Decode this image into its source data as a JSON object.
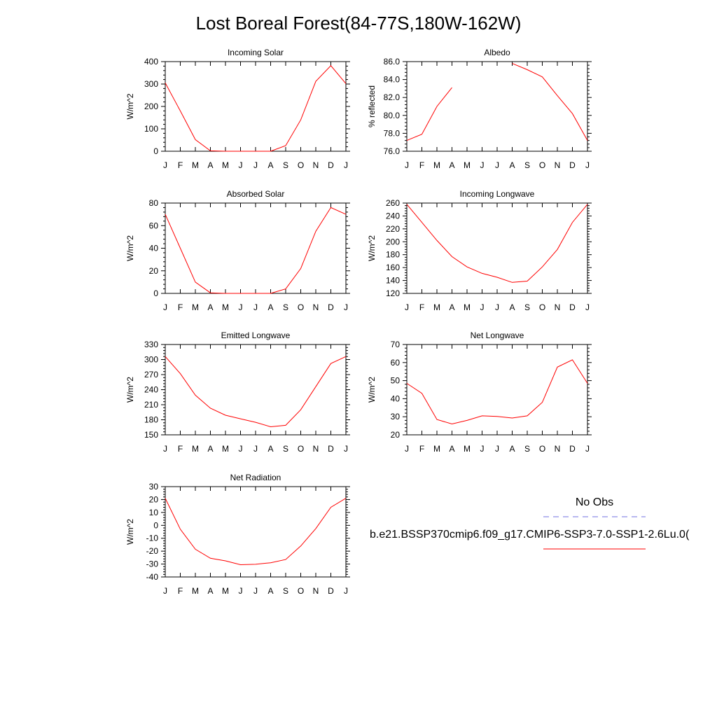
{
  "title": "Lost Boreal Forest(84-77S,180W-162W)",
  "colors": {
    "model_line": "#ff0000",
    "obs_line": "#7070e0",
    "axis": "#000000"
  },
  "legend": {
    "obs_label": "No Obs",
    "model_label": "b.e21.BSSP370cmip6.f09_g17.CMIP6-SSP3-7.0-SSP1-2.6Lu.0("
  },
  "chart_data": [
    {
      "type": "line",
      "title": "Incoming Solar",
      "ylabel": "W/m^2",
      "categories": [
        "J",
        "F",
        "M",
        "A",
        "M",
        "J",
        "J",
        "A",
        "S",
        "O",
        "N",
        "D",
        "J"
      ],
      "ylim": [
        0,
        400
      ],
      "yticks": [
        "0",
        "100",
        "200",
        "300",
        "400"
      ],
      "series": [
        {
          "values": [
            305,
            180,
            52,
            2,
            0,
            0,
            0,
            0,
            25,
            140,
            312,
            382,
            302
          ]
        }
      ]
    },
    {
      "type": "line",
      "title": "Albedo",
      "ylabel": "% reflected",
      "categories": [
        "J",
        "F",
        "M",
        "A",
        "M",
        "J",
        "J",
        "A",
        "S",
        "O",
        "N",
        "D",
        "J"
      ],
      "ylim": [
        76,
        86
      ],
      "yticks": [
        "76.0",
        "78.0",
        "80.0",
        "82.0",
        "84.0",
        "86.0"
      ],
      "series": [
        {
          "values": [
            77.2,
            77.9,
            81.0,
            83.1,
            null,
            null,
            null,
            85.8,
            85.1,
            84.3,
            82.2,
            80.2,
            77.2
          ]
        }
      ]
    },
    {
      "type": "line",
      "title": "Absorbed Solar",
      "ylabel": "W/m^2",
      "categories": [
        "J",
        "F",
        "M",
        "A",
        "M",
        "J",
        "J",
        "A",
        "S",
        "O",
        "N",
        "D",
        "J"
      ],
      "ylim": [
        0,
        80
      ],
      "yticks": [
        "0",
        "20",
        "40",
        "60",
        "80"
      ],
      "series": [
        {
          "values": [
            70,
            40,
            10,
            0.5,
            0,
            0,
            0,
            0,
            4,
            22,
            55,
            76,
            70
          ]
        }
      ]
    },
    {
      "type": "line",
      "title": "Incoming Longwave",
      "ylabel": "W/m^2",
      "categories": [
        "J",
        "F",
        "M",
        "A",
        "M",
        "J",
        "J",
        "A",
        "S",
        "O",
        "N",
        "D",
        "J"
      ],
      "ylim": [
        120,
        260
      ],
      "yticks": [
        "120",
        "140",
        "160",
        "180",
        "200",
        "220",
        "240",
        "260"
      ],
      "series": [
        {
          "values": [
            258,
            230,
            202,
            177,
            161,
            151,
            145,
            137,
            139,
            161,
            188,
            230,
            258
          ]
        }
      ]
    },
    {
      "type": "line",
      "title": "Emitted Longwave",
      "ylabel": "W/m^2",
      "categories": [
        "J",
        "F",
        "M",
        "A",
        "M",
        "J",
        "J",
        "A",
        "S",
        "O",
        "N",
        "D",
        "J"
      ],
      "ylim": [
        150,
        330
      ],
      "yticks": [
        "150",
        "180",
        "210",
        "240",
        "270",
        "300",
        "330"
      ],
      "series": [
        {
          "values": [
            306,
            272,
            229,
            203,
            189,
            182,
            175,
            166,
            169,
            200,
            246,
            292,
            306
          ]
        }
      ]
    },
    {
      "type": "line",
      "title": "Net Longwave",
      "ylabel": "W/m^2",
      "categories": [
        "J",
        "F",
        "M",
        "A",
        "M",
        "J",
        "J",
        "A",
        "S",
        "O",
        "N",
        "D",
        "J"
      ],
      "ylim": [
        20,
        70
      ],
      "yticks": [
        "20",
        "30",
        "40",
        "50",
        "60",
        "70"
      ],
      "series": [
        {
          "values": [
            48.5,
            43,
            28.5,
            26,
            28,
            30.5,
            30.2,
            29.3,
            30.5,
            38,
            57.5,
            61.5,
            48.5
          ]
        }
      ]
    },
    {
      "type": "line",
      "title": "Net Radiation",
      "ylabel": "W/m^2",
      "categories": [
        "J",
        "F",
        "M",
        "A",
        "M",
        "J",
        "J",
        "A",
        "S",
        "O",
        "N",
        "D",
        "J"
      ],
      "ylim": [
        -40,
        30
      ],
      "yticks": [
        "-40",
        "-30",
        "-20",
        "-10",
        "0",
        "10",
        "20",
        "30"
      ],
      "series": [
        {
          "values": [
            21,
            -3,
            -18.5,
            -25.5,
            -27.5,
            -30.5,
            -30.2,
            -29,
            -26.5,
            -16,
            -2.5,
            14,
            21
          ]
        }
      ]
    }
  ]
}
